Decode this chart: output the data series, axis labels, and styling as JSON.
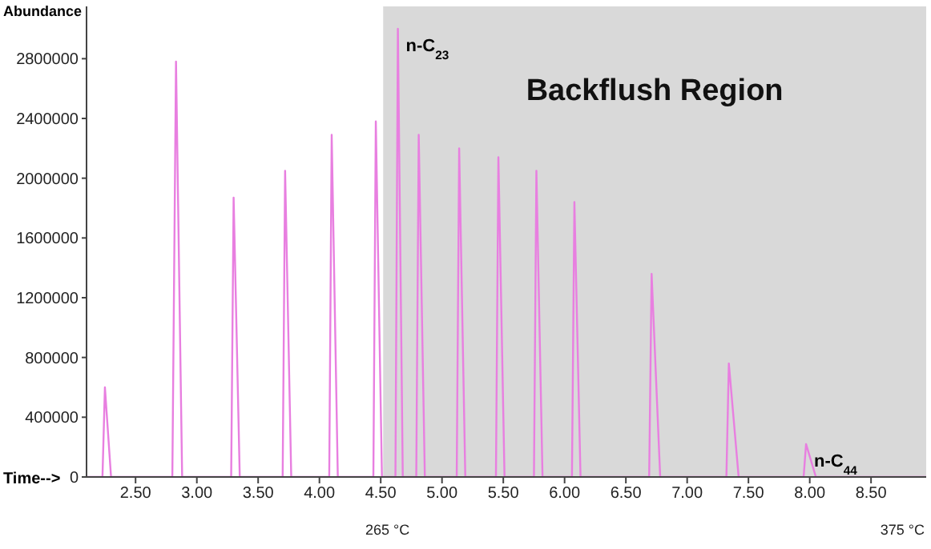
{
  "chart_data": {
    "type": "line",
    "ylabel": "Abundance",
    "xlabel": "Time-->",
    "x": [
      2.1,
      2.23,
      2.25,
      2.3,
      2.8,
      2.83,
      2.88,
      3.28,
      3.3,
      3.35,
      3.7,
      3.72,
      3.77,
      4.08,
      4.1,
      4.15,
      4.44,
      4.46,
      4.51,
      4.62,
      4.64,
      4.68,
      4.79,
      4.81,
      4.86,
      5.12,
      5.14,
      5.19,
      5.44,
      5.46,
      5.51,
      5.75,
      5.77,
      5.82,
      6.06,
      6.08,
      6.13,
      6.69,
      6.71,
      6.78,
      7.32,
      7.34,
      7.42,
      7.95,
      7.97,
      8.05,
      8.95
    ],
    "series": [
      {
        "color": "#e87fe0",
        "values": [
          0,
          0,
          600000,
          0,
          0,
          2780000,
          0,
          0,
          1870000,
          0,
          0,
          2050000,
          0,
          0,
          2290000,
          0,
          0,
          2380000,
          0,
          0,
          3000000,
          0,
          0,
          2290000,
          0,
          0,
          2200000,
          0,
          0,
          2140000,
          0,
          0,
          2050000,
          0,
          0,
          1840000,
          0,
          0,
          1360000,
          0,
          0,
          760000,
          0,
          0,
          220000,
          0,
          0
        ]
      }
    ],
    "xlim": [
      2.1,
      8.95
    ],
    "xticks": [
      {
        "value": 2.5,
        "label": "2.50"
      },
      {
        "value": 3,
        "label": "3.00"
      },
      {
        "value": 3.5,
        "label": "3.50"
      },
      {
        "value": 4,
        "label": "4.00"
      },
      {
        "value": 4.5,
        "label": "4.50"
      },
      {
        "value": 5,
        "label": "5.00"
      },
      {
        "value": 5.5,
        "label": "5.50"
      },
      {
        "value": 6,
        "label": "6.00"
      },
      {
        "value": 6.5,
        "label": "6.50"
      },
      {
        "value": 7,
        "label": "7.00"
      },
      {
        "value": 7.5,
        "label": "7.50"
      },
      {
        "value": 8,
        "label": "8.00"
      },
      {
        "value": 8.5,
        "label": "8.50"
      }
    ],
    "ylim": [
      0,
      3150000
    ],
    "yticks": [
      0,
      400000,
      800000,
      1200000,
      1600000,
      2000000,
      2400000,
      2800000
    ],
    "bands": [
      {
        "axis": "x",
        "from": 4.52,
        "to": 8.95,
        "label": "Backflush Region",
        "color": "#d9d9d9"
      }
    ],
    "annotations": [
      {
        "text": "n-C$_{23}$",
        "x": 4.64,
        "y": 3000000
      },
      {
        "text": "n-C$_{44}$",
        "x": 7.97,
        "y": 220000
      },
      "265 °C",
      "375 °C"
    ],
    "marker": "none",
    "line_style": "solid"
  }
}
